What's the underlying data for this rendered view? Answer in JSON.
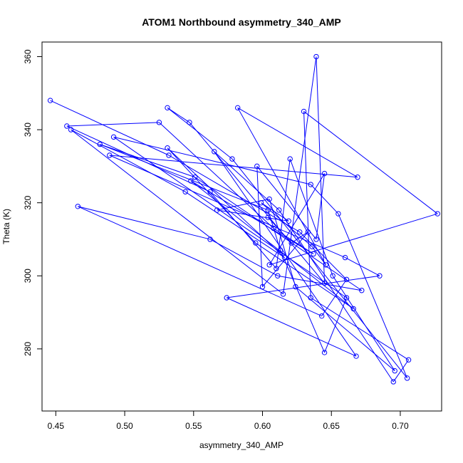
{
  "chart_data": {
    "type": "line",
    "title": "ATOM1 Northbound asymmetry_340_AMP",
    "xlabel": "asymmetry_340_AMP",
    "ylabel": "Theta (K)",
    "xlim": [
      0.44,
      0.73
    ],
    "ylim": [
      263,
      364
    ],
    "x_ticks": [
      0.45,
      0.5,
      0.55,
      0.6,
      0.65,
      0.7
    ],
    "x_tick_labels": [
      "0.45",
      "0.50",
      "0.55",
      "0.60",
      "0.65",
      "0.70"
    ],
    "y_ticks": [
      280,
      300,
      320,
      340,
      360
    ],
    "y_tick_labels": [
      "280",
      "300",
      "320",
      "340",
      "360"
    ],
    "grid": false,
    "marker": "open-circle",
    "color": "#0000ff",
    "series": [
      {
        "x": [
          0.446,
          0.532,
          0.627,
          0.661,
          0.643,
          0.466,
          0.562,
          0.611,
          0.672,
          0.551,
          0.482,
          0.604,
          0.613,
          0.645,
          0.661,
          0.492,
          0.635,
          0.655,
          0.705,
          0.578,
          0.531,
          0.547,
          0.645,
          0.639,
          0.615,
          0.461,
          0.544,
          0.616,
          0.531,
          0.595,
          0.666,
          0.548,
          0.637,
          0.608,
          0.525,
          0.458,
          0.562,
          0.61,
          0.62,
          0.651,
          0.696,
          0.624,
          0.605,
          0.567,
          0.619,
          0.599,
          0.636,
          0.646,
          0.582,
          0.669,
          0.489,
          0.66,
          0.685,
          0.574,
          0.668,
          0.565,
          0.612,
          0.695,
          0.706,
          0.635,
          0.63,
          0.727,
          0.605,
          0.645,
          0.639,
          0.596,
          0.6,
          0.633,
          0.621,
          0.604
        ],
        "y": [
          348.0,
          333.0,
          312.0,
          299.0,
          289.0,
          319.0,
          310.0,
          300.0,
          296.0,
          327.0,
          336.0,
          318.0,
          307.0,
          279.0,
          294.0,
          338.0,
          325.0,
          317.0,
          272.0,
          332.0,
          346.0,
          342.0,
          298.0,
          360.0,
          295.0,
          340.0,
          323.0,
          305.0,
          335.0,
          309.0,
          291.0,
          326.0,
          306.0,
          313.0,
          342.0,
          341.0,
          323.0,
          302.0,
          332.0,
          300.0,
          274.0,
          297.0,
          321.0,
          318.0,
          315.0,
          320.0,
          308.0,
          303.0,
          346.0,
          327.0,
          333.0,
          305.0,
          300.0,
          294.0,
          278.0,
          334.0,
          318.0,
          271.0,
          277.0,
          294.0,
          345.0,
          317.0,
          303.0,
          328.0,
          310.0,
          330.0,
          297.0,
          312.0,
          309.0,
          316.0
        ]
      }
    ]
  }
}
